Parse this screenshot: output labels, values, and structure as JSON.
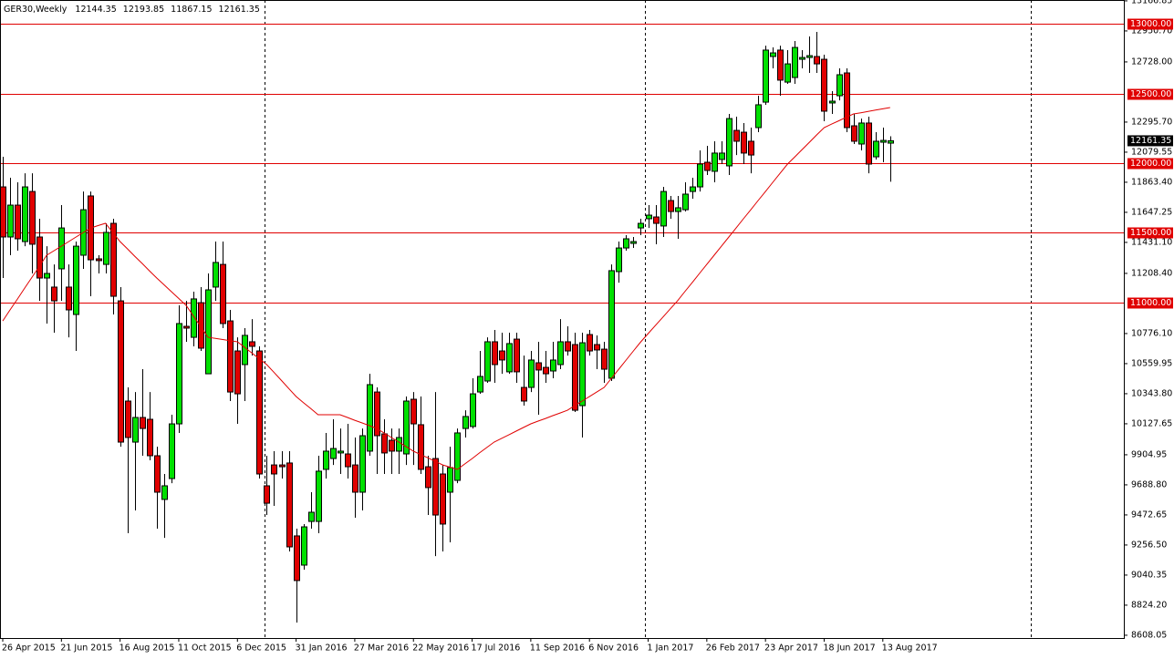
{
  "chart_data": {
    "type": "candlestick",
    "title": "GER30,Weekly",
    "categories": [
      "26 Apr 2015",
      null,
      null,
      null,
      null,
      null,
      null,
      null,
      "21 Jun 2015",
      null,
      null,
      null,
      null,
      null,
      null,
      null,
      "16 Aug 2015",
      null,
      null,
      null,
      null,
      null,
      null,
      null,
      "11 Oct 2015",
      null,
      null,
      null,
      null,
      null,
      null,
      null,
      "6 Dec 2015",
      null,
      null,
      null,
      null,
      null,
      null,
      null,
      "31 Jan 2016",
      null,
      null,
      null,
      null,
      null,
      null,
      null,
      "27 Mar 2016",
      null,
      null,
      null,
      null,
      null,
      null,
      null,
      "22 May 2016",
      null,
      null,
      null,
      null,
      null,
      null,
      null,
      "17 Jul 2016",
      null,
      null,
      null,
      null,
      null,
      null,
      null,
      "11 Sep 2016",
      null,
      null,
      null,
      null,
      null,
      null,
      null,
      "6 Nov 2016",
      null,
      null,
      null,
      null,
      null,
      null,
      null,
      "1 Jan 2017",
      null,
      null,
      null,
      null,
      null,
      null,
      null,
      "26 Feb 2017",
      null,
      null,
      null,
      null,
      null,
      null,
      null,
      "23 Apr 2017",
      null,
      null,
      null,
      null,
      null,
      null,
      null,
      "18 Jun 2017",
      null,
      null,
      null,
      null,
      null,
      null,
      null,
      "13 Aug 2017",
      null
    ],
    "open": [
      11830,
      11470,
      11699,
      11437,
      11797,
      11470,
      11175,
      11110,
      11241,
      11110,
      10913,
      11339,
      11765,
      11313,
      11273,
      11568,
      11011,
      10291,
      9996,
      10173,
      10160,
      9898,
      9584,
      9734,
      10127,
      10828,
      10749,
      10998,
      10487,
      11110,
      11273,
      10867,
      10651,
      10553,
      10717,
      10651,
      9682,
      9832,
      9832,
      9846,
      9322,
      9112,
      9426,
      9426,
      9800,
      9878,
      9918,
      9911,
      9832,
      9636,
      9931,
      10356,
      10055,
      10009,
      9931,
      9911,
      10304,
      10121,
      9819,
      9878,
      9767,
      9636,
      9721,
      10094,
      10108,
      10356,
      10435,
      10717,
      10651,
      10501,
      10736,
      10389,
      10389,
      10566,
      10533,
      10507,
      10553,
      10717,
      10697,
      10258,
      10769,
      10697,
      10664,
      10455,
      11221,
      11391,
      11424,
      11535,
      11601,
      11614,
      11549,
      11732,
      11653,
      11666,
      11797,
      11830,
      12007,
      11942,
      12027,
      11981,
      12236,
      12223,
      12158,
      12256,
      12439,
      12767,
      12813,
      12583,
      12616,
      12747,
      12760,
      12767,
      12747,
      12433,
      12485,
      12649,
      12269,
      12138,
      12289,
      12046,
      12151,
      12144.35
    ],
    "high": [
      12046,
      11896,
      11863,
      11928,
      11928,
      11601,
      11404,
      11273,
      11699,
      11273,
      11437,
      11797,
      11797,
      11339,
      11568,
      11601,
      11110,
      10389,
      10356,
      10520,
      10356,
      9963,
      9767,
      10193,
      10979,
      11011,
      11077,
      11110,
      11208,
      11437,
      11437,
      10946,
      10749,
      10815,
      10880,
      10684,
      9898,
      9931,
      9931,
      9931,
      9374,
      9407,
      9636,
      9898,
      10062,
      10160,
      10094,
      10127,
      10029,
      10094,
      10487,
      10389,
      10160,
      10094,
      10094,
      10324,
      10356,
      10324,
      9898,
      10356,
      9832,
      9963,
      10094,
      10225,
      10455,
      10651,
      10749,
      10802,
      10782,
      10782,
      10782,
      10618,
      10651,
      10717,
      10651,
      10717,
      10880,
      10828,
      10782,
      10782,
      10802,
      10763,
      10717,
      11273,
      11437,
      11483,
      11470,
      11601,
      11699,
      11699,
      11830,
      11765,
      11765,
      11863,
      11896,
      12092,
      12125,
      12158,
      12158,
      12354,
      12335,
      12289,
      12256,
      12485,
      12845,
      12832,
      12845,
      12813,
      12878,
      12813,
      12911,
      12944,
      12780,
      12518,
      12682,
      12682,
      12354,
      12321,
      12335,
      12223,
      12256,
      12193.85
    ],
    "low": [
      11175,
      11339,
      11372,
      11404,
      11208,
      11011,
      10848,
      10782,
      11011,
      10749,
      10651,
      11241,
      11044,
      11208,
      11208,
      10913,
      9963,
      9341,
      9505,
      9898,
      9865,
      9374,
      9308,
      9701,
      10062,
      10717,
      10684,
      10651,
      10487,
      11011,
      10815,
      10291,
      10127,
      10291,
      10618,
      9734,
      9472,
      9538,
      9734,
      9210,
      8699,
      9079,
      9374,
      9341,
      9734,
      9832,
      9767,
      9734,
      9453,
      9505,
      9898,
      9767,
      9767,
      9767,
      9767,
      9832,
      9832,
      9767,
      9472,
      9177,
      9210,
      9276,
      9701,
      10029,
      10094,
      10343,
      10422,
      10422,
      10487,
      10487,
      10422,
      10258,
      10356,
      10193,
      10422,
      10455,
      10520,
      10618,
      10212,
      10029,
      10618,
      10520,
      10422,
      10435,
      11142,
      11372,
      11391,
      11483,
      11535,
      11418,
      11470,
      11601,
      11457,
      11653,
      11745,
      11797,
      11915,
      11863,
      11994,
      11915,
      12059,
      11994,
      11928,
      12223,
      12420,
      12682,
      12485,
      12570,
      12570,
      12682,
      12649,
      12649,
      12302,
      12354,
      12452,
      12223,
      12138,
      12092,
      11928,
      12027,
      12007,
      11867.15
    ],
    "close": [
      11470,
      11699,
      11457,
      11830,
      11418,
      11175,
      11208,
      11011,
      11535,
      10946,
      11404,
      11666,
      11306,
      11300,
      11503,
      11044,
      9996,
      10029,
      10173,
      10094,
      9898,
      9636,
      9682,
      10127,
      10848,
      10815,
      11025,
      10671,
      11090,
      11287,
      10848,
      10356,
      10343,
      10763,
      10684,
      9767,
      9557,
      9767,
      9819,
      9243,
      9001,
      9387,
      9492,
      9787,
      9931,
      9950,
      9931,
      9819,
      9636,
      10042,
      10409,
      10042,
      9918,
      9931,
      10029,
      10291,
      10127,
      9800,
      9669,
      9472,
      9407,
      9813,
      10062,
      10180,
      10343,
      10468,
      10717,
      10553,
      10586,
      10704,
      10501,
      10291,
      10586,
      10514,
      10487,
      10586,
      10717,
      10651,
      10225,
      10710,
      10651,
      10658,
      10520,
      11228,
      11391,
      11457,
      11437,
      11568,
      11627,
      11568,
      11797,
      11653,
      11680,
      11778,
      11830,
      11994,
      11948,
      12073,
      12073,
      12321,
      12158,
      12073,
      12059,
      12420,
      12813,
      12793,
      12597,
      12714,
      12832,
      12760,
      12773,
      12714,
      12374,
      12446,
      12636,
      12256,
      12158,
      12289,
      11994,
      12158,
      12164,
      12161.35
    ],
    "up_color": "#00e000",
    "down_color": "#e00000",
    "moving_average": {
      "color": "#e00000",
      "values": [
        10867,
        10946,
        11024,
        11103,
        11182,
        11260,
        11339,
        11372,
        11404,
        11437,
        11470,
        11502,
        11535,
        11552,
        11568,
        11503,
        11437,
        11385,
        11332,
        11280,
        11227,
        11175,
        11126,
        11077,
        11028,
        10979,
        10902,
        10826,
        10749,
        10741,
        10733,
        10725,
        10717,
        10676,
        10635,
        10594,
        10553,
        10496,
        10439,
        10381,
        10324,
        10280,
        10237,
        10193,
        10193,
        10193,
        10193,
        10173,
        10153,
        10134,
        10114,
        10094,
        10061,
        10029,
        9996,
        9964,
        9931,
        9906,
        9882,
        9857,
        9832,
        9816,
        9800,
        9839,
        9878,
        9918,
        9957,
        9996,
        10022,
        10048,
        10075,
        10101,
        10127,
        10147,
        10166,
        10186,
        10205,
        10225,
        10258,
        10291,
        10323,
        10356,
        10389,
        10455,
        10520,
        10586,
        10651,
        10717,
        10776,
        10835,
        10893,
        10952,
        11011,
        11077,
        11142,
        11208,
        11273,
        11339,
        11404,
        11470,
        11535,
        11601,
        11666,
        11732,
        11797,
        11863,
        11928,
        11994,
        12046,
        12099,
        12151,
        12204,
        12256,
        12281,
        12305,
        12330,
        12354,
        12363,
        12372,
        12382,
        12391,
        12400
      ]
    },
    "levels": [
      {
        "value": 13000,
        "label": "13000.00"
      },
      {
        "value": 12500,
        "label": "12500.00"
      },
      {
        "value": 12000,
        "label": "12000.00"
      },
      {
        "value": 11500,
        "label": "11500.00"
      },
      {
        "value": 11000,
        "label": "11000.00"
      }
    ],
    "level_color": "#e00000",
    "last_price": 12161.35,
    "ylim": [
      8588,
      13173
    ],
    "yticks": [
      13166.85,
      {
        "value": 12950.7,
        "label": "12950.70"
      },
      {
        "value": 12728,
        "label": "12728.00"
      },
      {
        "value": 12295.7,
        "label": "12295.70"
      },
      12079.55,
      {
        "value": 11863.4,
        "label": "11863.40"
      },
      11647.25,
      {
        "value": 11431.1,
        "label": "11431.10"
      },
      {
        "value": 11208.4,
        "label": "11208.40"
      },
      {
        "value": 10776.1,
        "label": "10776.10"
      },
      10559.95,
      {
        "value": 10343.8,
        "label": "10343.80"
      },
      10127.65,
      9904.95,
      {
        "value": 9688.8,
        "label": "9688.80"
      },
      9472.65,
      {
        "value": 9256.5,
        "label": "9256.50"
      },
      9040.35,
      {
        "value": 8824.2,
        "label": "8824.20"
      },
      8608.05
    ]
  }
}
